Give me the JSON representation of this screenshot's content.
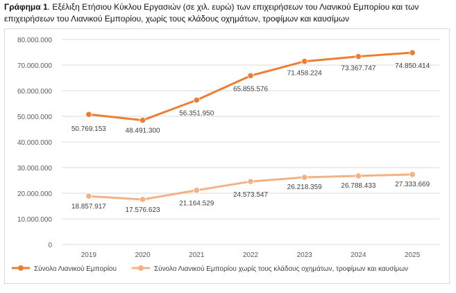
{
  "caption": {
    "label": "Γράφημα 1",
    "text": ". Εξέλιξη Ετήσιου Κύκλου Εργασιών (σε χιλ. ευρώ) των επιχειρήσεων του Λιανικού Εμπορίου και των επιχειρήσεων του Λιανικού Εμπορίου, χωρίς τους κλάδους οχημάτων, τροφίμων και καυσίμων"
  },
  "chart_data": {
    "type": "line",
    "title": "",
    "xlabel": "",
    "ylabel": "",
    "categories": [
      "2019",
      "2020",
      "2021",
      "2022",
      "2023",
      "2024",
      "2025"
    ],
    "ylim": [
      0,
      80000000
    ],
    "yticks": [
      0,
      10000000,
      20000000,
      30000000,
      40000000,
      50000000,
      60000000,
      70000000,
      80000000
    ],
    "ytick_labels": [
      "0",
      "10.000.000",
      "20.000.000",
      "30.000.000",
      "40.000.000",
      "50.000.000",
      "60.000.000",
      "70.000.000",
      "80.000.000"
    ],
    "grid": true,
    "legend_position": "bottom",
    "series": [
      {
        "name": "Σύνολο Λιανικού Εμπορίου",
        "color": "#ED7D31",
        "values": [
          50769153,
          48491300,
          56351950,
          65855576,
          71458224,
          73367747,
          74850414
        ],
        "labels": [
          "50.769.153",
          "48.491.300",
          "56.351.950",
          "65.855.576",
          "71.458.224",
          "73.367.747",
          "74.850.414"
        ]
      },
      {
        "name": "Σύνολο Λιανικού Εμπορίου χωρίς τους κλάδους οχημάτων, τροφίμων και καυσίμων",
        "color": "#F4B183",
        "values": [
          18857917,
          17576623,
          21164529,
          24573547,
          26218359,
          26788433,
          27333669
        ],
        "labels": [
          "18.857.917",
          "17.576.623",
          "21.164.529",
          "24.573.547",
          "26.218.359",
          "26.788.433",
          "27.333.669"
        ]
      }
    ]
  }
}
